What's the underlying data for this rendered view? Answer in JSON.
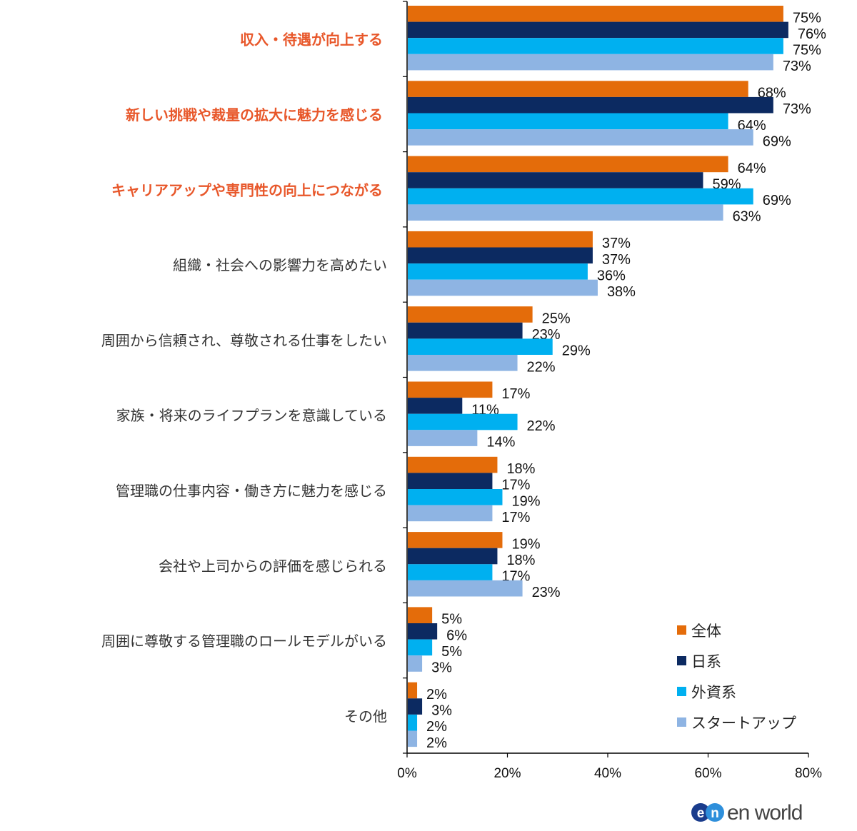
{
  "chart_data": {
    "type": "bar",
    "orientation": "horizontal",
    "categories": [
      "収入・待遇が向上する",
      "新しい挑戦や裁量の拡大に魅力を感じる",
      "キャリアアップや専門性の向上につながる",
      "組織・社会への影響力を高めたい",
      "周囲から信頼され、尊敬される仕事をしたい",
      "家族・将来のライフプランを意識している",
      "管理職の仕事内容・働き方に魅力を感じる",
      "会社や上司からの評価を感じられる",
      "周囲に尊敬する管理職のロールモデルがいる",
      "その他"
    ],
    "highlighted_categories": [
      0,
      1,
      2
    ],
    "highlight_color": "#E8572A",
    "series": [
      {
        "name": "全体",
        "color": "#E46C0A",
        "values": [
          75,
          68,
          64,
          37,
          25,
          17,
          18,
          19,
          5,
          2
        ]
      },
      {
        "name": "日系",
        "color": "#0C2A61",
        "values": [
          76,
          73,
          59,
          37,
          23,
          11,
          17,
          18,
          6,
          3
        ]
      },
      {
        "name": "外資系",
        "color": "#00B0F0",
        "values": [
          75,
          64,
          69,
          36,
          29,
          22,
          19,
          17,
          5,
          2
        ]
      },
      {
        "name": "スタートアップ",
        "color": "#8EB4E3",
        "values": [
          73,
          69,
          63,
          38,
          22,
          14,
          17,
          23,
          3,
          2
        ]
      }
    ],
    "value_suffix": "%",
    "xlim": [
      0,
      80
    ],
    "x_ticks": [
      "0%",
      "20%",
      "40%",
      "60%",
      "80%"
    ],
    "grid": false,
    "legend_position": "bottom-right"
  },
  "logo": {
    "text": "en world",
    "mark": "en"
  }
}
